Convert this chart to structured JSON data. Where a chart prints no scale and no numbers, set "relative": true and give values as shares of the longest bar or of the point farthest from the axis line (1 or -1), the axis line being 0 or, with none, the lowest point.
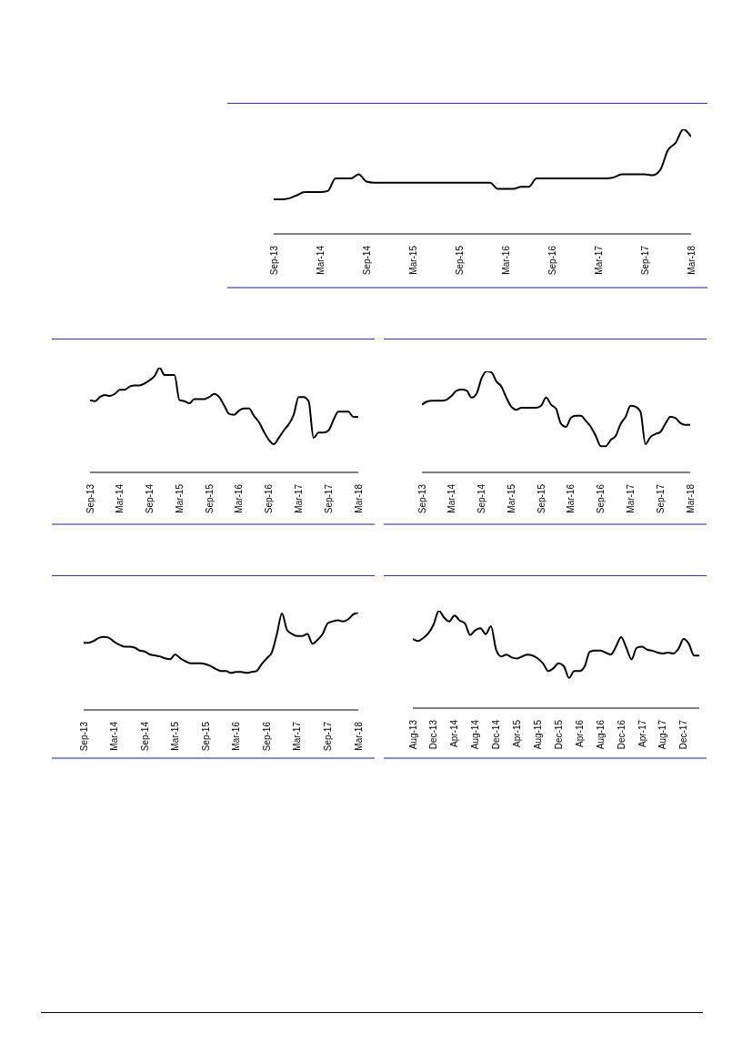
{
  "chart_data": [
    {
      "type": "line",
      "relative": true,
      "color": "#000000",
      "categories": [
        "Sep-13",
        null,
        null,
        null,
        null,
        null,
        "Mar-14",
        null,
        null,
        null,
        null,
        null,
        "Sep-14",
        null,
        null,
        null,
        null,
        null,
        "Mar-15",
        null,
        null,
        null,
        null,
        null,
        "Sep-15",
        null,
        null,
        null,
        null,
        null,
        "Mar-16",
        null,
        null,
        null,
        null,
        null,
        "Sep-16",
        null,
        null,
        null,
        null,
        null,
        "Mar-17",
        null,
        null,
        null,
        null,
        null,
        "Sep-17",
        null,
        null,
        null,
        null,
        null,
        "Mar-18"
      ],
      "values": [
        0.33,
        0.33,
        0.34,
        0.37,
        0.4,
        0.4,
        0.4,
        0.41,
        0.53,
        0.53,
        0.53,
        0.57,
        0.5,
        0.49,
        0.49,
        0.49,
        0.49,
        0.49,
        0.49,
        0.49,
        0.49,
        0.49,
        0.49,
        0.49,
        0.49,
        0.49,
        0.49,
        0.49,
        0.49,
        0.43,
        0.43,
        0.43,
        0.45,
        0.45,
        0.53,
        0.53,
        0.53,
        0.53,
        0.53,
        0.53,
        0.53,
        0.53,
        0.53,
        0.53,
        0.54,
        0.57,
        0.57,
        0.57,
        0.57,
        0.56,
        0.61,
        0.8,
        0.87,
        1,
        0.93
      ]
    },
    {
      "type": "line",
      "relative": true,
      "color": "#000000",
      "categories": [
        "Sep-13",
        null,
        null,
        null,
        null,
        null,
        "Mar-14",
        null,
        null,
        null,
        null,
        null,
        "Sep-14",
        null,
        null,
        null,
        null,
        null,
        "Mar-15",
        null,
        null,
        null,
        null,
        null,
        "Sep-15",
        null,
        null,
        null,
        null,
        null,
        "Mar-16",
        null,
        null,
        null,
        null,
        null,
        "Sep-16",
        null,
        null,
        null,
        null,
        null,
        "Mar-17",
        null,
        null,
        null,
        null,
        null,
        "Sep-17",
        null,
        null,
        null,
        null,
        null,
        "Mar-18"
      ],
      "values": [
        0.69,
        0.68,
        0.72,
        0.74,
        0.73,
        0.75,
        0.79,
        0.79,
        0.82,
        0.83,
        0.83,
        0.85,
        0.88,
        0.92,
        1,
        0.93,
        0.93,
        0.93,
        0.69,
        0.68,
        0.66,
        0.7,
        0.7,
        0.7,
        0.72,
        0.75,
        0.72,
        0.64,
        0.56,
        0.55,
        0.59,
        0.61,
        0.61,
        0.54,
        0.48,
        0.39,
        0.31,
        0.27,
        0.33,
        0.4,
        0.46,
        0.55,
        0.72,
        0.72,
        0.68,
        0.33,
        0.38,
        0.38,
        0.4,
        0.5,
        0.58,
        0.58,
        0.58,
        0.53,
        0.53
      ]
    },
    {
      "type": "line",
      "relative": true,
      "color": "#000000",
      "categories": [
        "Sep-13",
        null,
        null,
        null,
        null,
        null,
        "Mar-14",
        null,
        null,
        null,
        null,
        null,
        "Sep-14",
        null,
        null,
        null,
        null,
        null,
        "Mar-15",
        null,
        null,
        null,
        null,
        null,
        "Sep-15",
        null,
        null,
        null,
        null,
        null,
        "Mar-16",
        null,
        null,
        null,
        null,
        null,
        "Sep-16",
        null,
        null,
        null,
        null,
        null,
        "Mar-17",
        null,
        null,
        null,
        null,
        null,
        "Sep-17",
        null,
        null,
        null,
        null,
        null,
        "Mar-18"
      ],
      "values": [
        0.67,
        0.7,
        0.71,
        0.71,
        0.71,
        0.72,
        0.76,
        0.81,
        0.82,
        0.81,
        0.74,
        0.78,
        0.93,
        1,
        0.99,
        0.9,
        0.85,
        0.74,
        0.65,
        0.62,
        0.64,
        0.64,
        0.64,
        0.64,
        0.66,
        0.74,
        0.67,
        0.63,
        0.48,
        0.45,
        0.54,
        0.56,
        0.56,
        0.51,
        0.45,
        0.36,
        0.26,
        0.26,
        0.32,
        0.36,
        0.48,
        0.55,
        0.66,
        0.65,
        0.6,
        0.28,
        0.35,
        0.38,
        0.4,
        0.48,
        0.55,
        0.54,
        0.49,
        0.47,
        0.47
      ]
    },
    {
      "type": "line",
      "relative": true,
      "color": "#000000",
      "categories": [
        "Sep-13",
        null,
        null,
        null,
        null,
        null,
        "Mar-14",
        null,
        null,
        null,
        null,
        null,
        "Sep-14",
        null,
        null,
        null,
        null,
        null,
        "Mar-15",
        null,
        null,
        null,
        null,
        null,
        "Sep-15",
        null,
        null,
        null,
        null,
        null,
        "Mar-16",
        null,
        null,
        null,
        null,
        null,
        "Sep-16",
        null,
        null,
        null,
        null,
        null,
        "Mar-17",
        null,
        null,
        null,
        null,
        null,
        "Sep-17",
        null,
        null,
        null,
        null,
        null,
        "Mar-18"
      ],
      "values": [
        0.69,
        0.69,
        0.71,
        0.74,
        0.75,
        0.74,
        0.7,
        0.67,
        0.65,
        0.65,
        0.64,
        0.61,
        0.6,
        0.57,
        0.56,
        0.55,
        0.53,
        0.52,
        0.57,
        0.53,
        0.5,
        0.48,
        0.48,
        0.48,
        0.47,
        0.45,
        0.42,
        0.4,
        0.4,
        0.38,
        0.39,
        0.39,
        0.38,
        0.39,
        0.4,
        0.47,
        0.53,
        0.59,
        0.78,
        0.99,
        0.82,
        0.78,
        0.76,
        0.76,
        0.78,
        0.68,
        0.72,
        0.78,
        0.89,
        0.91,
        0.92,
        0.91,
        0.93,
        0.98,
        1
      ]
    },
    {
      "type": "line",
      "relative": true,
      "color": "#000000",
      "categories": [
        "Aug-13",
        null,
        null,
        null,
        "Dec-13",
        null,
        null,
        null,
        "Apr-14",
        null,
        null,
        null,
        "Aug-14",
        null,
        null,
        null,
        "Dec-14",
        null,
        null,
        null,
        "Apr-15",
        null,
        null,
        null,
        "Aug-15",
        null,
        null,
        null,
        "Dec-15",
        null,
        null,
        null,
        "Apr-16",
        null,
        null,
        null,
        "Aug-16",
        null,
        null,
        null,
        "Dec-16",
        null,
        null,
        null,
        "Apr-17",
        null,
        null,
        null,
        "Aug-17",
        null,
        null,
        null,
        "Dec-17",
        null,
        null,
        null
      ],
      "values": [
        0.71,
        0.69,
        0.72,
        0.77,
        0.86,
        1,
        0.93,
        0.89,
        0.95,
        0.9,
        0.87,
        0.75,
        0.8,
        0.82,
        0.76,
        0.84,
        0.6,
        0.53,
        0.55,
        0.52,
        0.51,
        0.53,
        0.55,
        0.54,
        0.51,
        0.46,
        0.38,
        0.41,
        0.46,
        0.43,
        0.31,
        0.38,
        0.38,
        0.43,
        0.58,
        0.59,
        0.59,
        0.57,
        0.55,
        0.63,
        0.73,
        0.62,
        0.5,
        0.62,
        0.63,
        0.6,
        0.59,
        0.57,
        0.56,
        0.57,
        0.56,
        0.61,
        0.71,
        0.66,
        0.54,
        0.54
      ]
    }
  ]
}
